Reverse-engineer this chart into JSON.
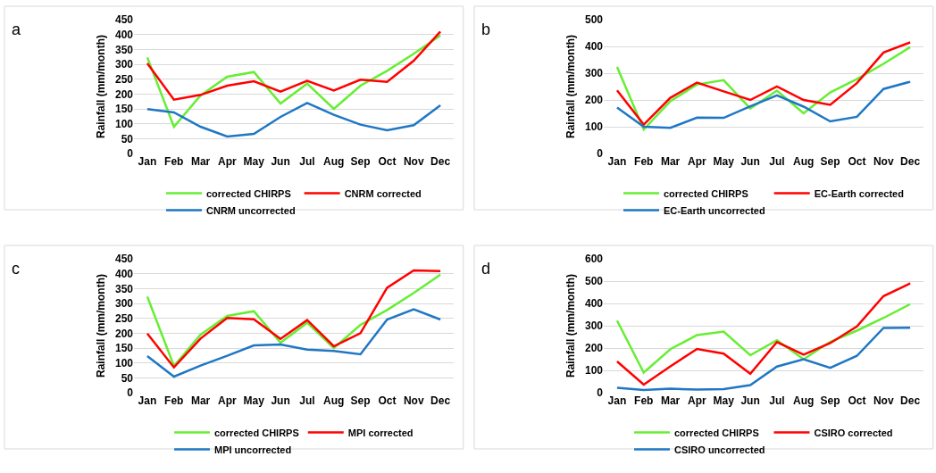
{
  "chart_data": [
    {
      "type": "line",
      "title": "a",
      "ylabel": "Rainfall (mm/month)",
      "categories": [
        "Jan",
        "Feb",
        "Mar",
        "Apr",
        "May",
        "Jun",
        "Jul",
        "Aug",
        "Sep",
        "Oct",
        "Nov",
        "Dec"
      ],
      "ylim": [
        0,
        450
      ],
      "yticks": [
        0,
        50,
        100,
        150,
        200,
        250,
        300,
        350,
        400,
        450
      ],
      "grid": "y",
      "legend": "bottom",
      "marker": "none",
      "series": [
        {
          "name": "corrected CHIRPS",
          "color": "#66ee33",
          "values": [
            323,
            90,
            195,
            258,
            274,
            168,
            235,
            150,
            228,
            278,
            335,
            397
          ]
        },
        {
          "name": "CNRM corrected",
          "color": "#ff0000",
          "values": [
            303,
            181,
            197,
            228,
            243,
            208,
            244,
            212,
            248,
            241,
            312,
            410
          ]
        },
        {
          "name": "CNRM uncorrected",
          "color": "#1f77c4",
          "values": [
            149,
            138,
            90,
            57,
            66,
            123,
            170,
            130,
            97,
            78,
            95,
            162
          ]
        }
      ]
    },
    {
      "type": "line",
      "title": "b",
      "ylabel": "Rainfall (mm/month)",
      "categories": [
        "Jan",
        "Feb",
        "Mar",
        "Apr",
        "May",
        "Jun",
        "Jul",
        "Aug",
        "Sep",
        "Oct",
        "Nov",
        "Dec"
      ],
      "ylim": [
        0,
        500
      ],
      "yticks": [
        0,
        100,
        200,
        300,
        400,
        500
      ],
      "grid": "y",
      "legend": "bottom",
      "marker": "none",
      "series": [
        {
          "name": "corrected CHIRPS",
          "color": "#66ee33",
          "values": [
            323,
            90,
            195,
            258,
            274,
            168,
            235,
            150,
            228,
            278,
            335,
            397
          ]
        },
        {
          "name": "EC-Earth corrected",
          "color": "#ff0000",
          "values": [
            236,
            108,
            208,
            265,
            232,
            200,
            250,
            200,
            182,
            263,
            377,
            415
          ]
        },
        {
          "name": "EC-Earth uncorrected",
          "color": "#1f77c4",
          "values": [
            172,
            100,
            96,
            134,
            133,
            176,
            217,
            175,
            120,
            137,
            241,
            268
          ]
        }
      ]
    },
    {
      "type": "line",
      "title": "c",
      "ylabel": "Rainfall (mm/month)",
      "categories": [
        "Jan",
        "Feb",
        "Mar",
        "Apr",
        "May",
        "Jun",
        "Jul",
        "Aug",
        "Sep",
        "Oct",
        "Nov",
        "Dec"
      ],
      "ylim": [
        0,
        450
      ],
      "yticks": [
        0,
        50,
        100,
        150,
        200,
        250,
        300,
        350,
        400,
        450
      ],
      "grid": "y",
      "legend": "bottom",
      "marker": "none",
      "series": [
        {
          "name": "corrected CHIRPS",
          "color": "#66ee33",
          "values": [
            323,
            90,
            195,
            258,
            274,
            168,
            235,
            150,
            228,
            278,
            335,
            397
          ]
        },
        {
          "name": "MPI corrected",
          "color": "#ff0000",
          "values": [
            199,
            85,
            182,
            251,
            247,
            181,
            244,
            156,
            200,
            353,
            411,
            409
          ]
        },
        {
          "name": "MPI uncorrected",
          "color": "#1f77c4",
          "values": [
            123,
            54,
            91,
            124,
            159,
            162,
            145,
            140,
            129,
            246,
            280,
            246
          ]
        }
      ]
    },
    {
      "type": "line",
      "title": "d",
      "ylabel": "Rainfall (mm/month)",
      "categories": [
        "Jan",
        "Feb",
        "Mar",
        "Apr",
        "May",
        "Jun",
        "Jul",
        "Aug",
        "Sep",
        "Oct",
        "Nov",
        "Dec"
      ],
      "ylim": [
        0,
        600
      ],
      "yticks": [
        0,
        100,
        200,
        300,
        400,
        500,
        600
      ],
      "grid": "y",
      "legend": "bottom",
      "marker": "none",
      "series": [
        {
          "name": "corrected CHIRPS",
          "color": "#66ee33",
          "values": [
            323,
            90,
            195,
            258,
            274,
            168,
            235,
            150,
            228,
            278,
            335,
            397
          ]
        },
        {
          "name": "CSIRO corrected",
          "color": "#ff0000",
          "values": [
            140,
            36,
            118,
            196,
            175,
            85,
            227,
            170,
            222,
            297,
            433,
            490
          ]
        },
        {
          "name": "CSIRO uncorrected",
          "color": "#1f77c4",
          "values": [
            22,
            12,
            18,
            14,
            16,
            34,
            117,
            150,
            111,
            165,
            290,
            291
          ]
        }
      ]
    }
  ]
}
